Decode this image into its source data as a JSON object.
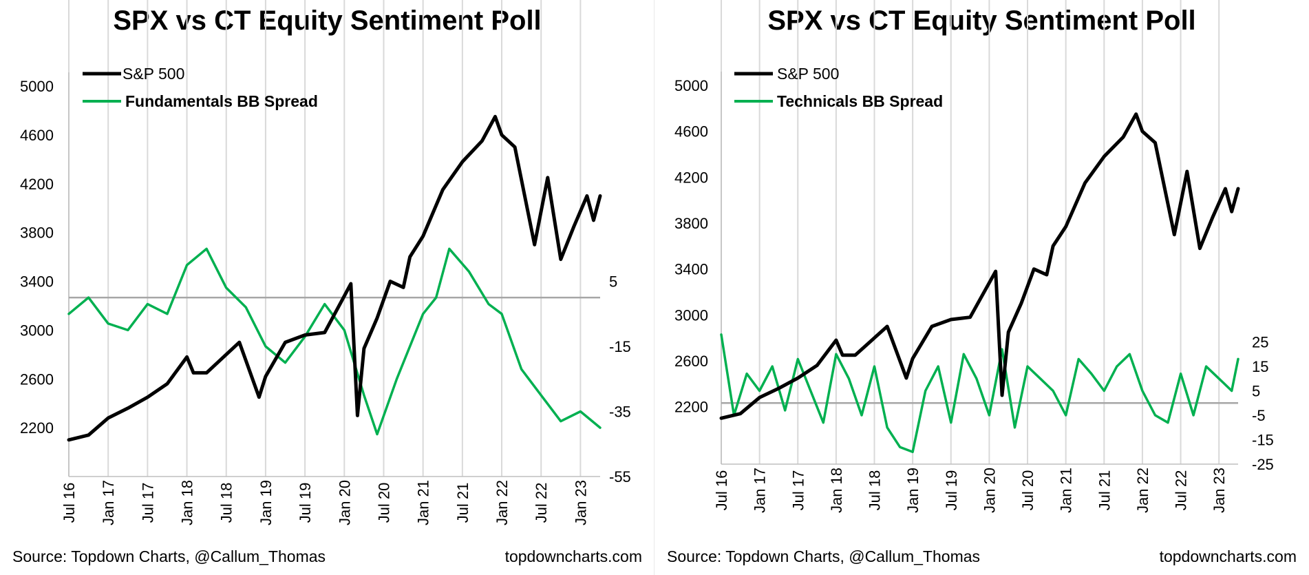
{
  "colors": {
    "spx": "#000000",
    "spread": "#00b050",
    "grid": "#d9d9d9",
    "zero_line": "#a6a6a6"
  },
  "panels": [
    {
      "title": "SPX vs CT Equity Sentiment Poll",
      "legend": [
        "S&P 500",
        "Fundamentals BB Spread"
      ],
      "source": "Source: Topdown Charts, @Callum_Thomas",
      "site": "topdowncharts.com"
    },
    {
      "title": "SPX vs CT Equity Sentiment Poll",
      "legend": [
        "S&P 500",
        "Technicals BB Spread"
      ],
      "source": "Source: Topdown Charts, @Callum_Thomas",
      "site": "topdowncharts.com"
    }
  ],
  "chart_data": [
    {
      "type": "line",
      "title": "SPX vs CT Equity Sentiment Poll",
      "x_range": [
        "Jul 16",
        "Apr 23"
      ],
      "x_ticks": [
        "Jul 16",
        "Jan 17",
        "Jul 17",
        "Jan 18",
        "Jul 18",
        "Jan 19",
        "Jul 19",
        "Jan 20",
        "Jul 20",
        "Jan 21",
        "Jul 21",
        "Jan 22",
        "Jul 22",
        "Jan 23"
      ],
      "y_left": {
        "ticks": [
          2200,
          2600,
          3000,
          3400,
          3800,
          4200,
          4600,
          5000
        ],
        "range": [
          1800,
          5000
        ]
      },
      "y_right": {
        "ticks": [
          5,
          -15,
          -35,
          -55
        ],
        "range": [
          -55,
          65
        ]
      },
      "horizontal_line_right": 0,
      "legend_position": "top-left",
      "grid": "vertical",
      "series": [
        {
          "name": "S&P 500",
          "axis": "left",
          "x": [
            "Jul 16",
            "Oct 16",
            "Jan 17",
            "Apr 17",
            "Jul 17",
            "Oct 17",
            "Jan 18",
            "Feb 18",
            "Apr 18",
            "Jul 18",
            "Sep 18",
            "Dec 18",
            "Jan 19",
            "Apr 19",
            "Jul 19",
            "Oct 19",
            "Jan 20",
            "Feb 20",
            "Mar 20",
            "Apr 20",
            "Jun 20",
            "Aug 20",
            "Oct 20",
            "Nov 20",
            "Jan 21",
            "Apr 21",
            "Jul 21",
            "Oct 21",
            "Dec 21",
            "Jan 22",
            "Mar 22",
            "Jun 22",
            "Aug 22",
            "Oct 22",
            "Dec 22",
            "Feb 23",
            "Mar 23",
            "Apr 23"
          ],
          "values": [
            2100,
            2140,
            2280,
            2360,
            2450,
            2560,
            2780,
            2650,
            2650,
            2800,
            2900,
            2450,
            2620,
            2900,
            2960,
            2980,
            3280,
            3380,
            2300,
            2850,
            3100,
            3400,
            3350,
            3600,
            3770,
            4150,
            4380,
            4550,
            4750,
            4600,
            4500,
            3700,
            4250,
            3580,
            3850,
            4100,
            3900,
            4100
          ]
        },
        {
          "name": "Fundamentals BB Spread",
          "axis": "right",
          "x": [
            "Jul 16",
            "Oct 16",
            "Jan 17",
            "Apr 17",
            "Jul 17",
            "Oct 17",
            "Jan 18",
            "Apr 18",
            "Jul 18",
            "Oct 18",
            "Jan 19",
            "Apr 19",
            "Jul 19",
            "Oct 19",
            "Jan 20",
            "Apr 20",
            "Jun 20",
            "Sep 20",
            "Jan 21",
            "Mar 21",
            "May 21",
            "Aug 21",
            "Nov 21",
            "Jan 22",
            "Apr 22",
            "Jul 22",
            "Oct 22",
            "Jan 23",
            "Apr 23"
          ],
          "values": [
            -5,
            0,
            -8,
            -10,
            -2,
            -5,
            10,
            15,
            3,
            -3,
            -15,
            -20,
            -12,
            -2,
            -10,
            -30,
            -42,
            -25,
            -5,
            0,
            15,
            8,
            -2,
            -5,
            -22,
            -30,
            -38,
            -35,
            -40
          ]
        }
      ]
    },
    {
      "type": "line",
      "title": "SPX vs CT Equity Sentiment Poll",
      "x_range": [
        "Jul 16",
        "Apr 23"
      ],
      "x_ticks": [
        "Jul 16",
        "Jan 17",
        "Jul 17",
        "Jan 18",
        "Jul 18",
        "Jan 19",
        "Jul 19",
        "Jan 20",
        "Jul 20",
        "Jan 21",
        "Jul 21",
        "Jan 22",
        "Jul 22",
        "Jan 23"
      ],
      "y_left": {
        "ticks": [
          2200,
          2600,
          3000,
          3400,
          3800,
          4200,
          4600,
          5000
        ],
        "range": [
          1700,
          5000
        ]
      },
      "y_right": {
        "ticks": [
          25,
          15,
          5,
          -5,
          -15,
          -25
        ],
        "range": [
          -25,
          130
        ]
      },
      "horizontal_line_right": 0,
      "legend_position": "top-left",
      "grid": "vertical",
      "series": [
        {
          "name": "S&P 500",
          "axis": "left",
          "x": [
            "Jul 16",
            "Oct 16",
            "Jan 17",
            "Apr 17",
            "Jul 17",
            "Oct 17",
            "Jan 18",
            "Feb 18",
            "Apr 18",
            "Jul 18",
            "Sep 18",
            "Dec 18",
            "Jan 19",
            "Apr 19",
            "Jul 19",
            "Oct 19",
            "Jan 20",
            "Feb 20",
            "Mar 20",
            "Apr 20",
            "Jun 20",
            "Aug 20",
            "Oct 20",
            "Nov 20",
            "Jan 21",
            "Apr 21",
            "Jul 21",
            "Oct 21",
            "Dec 21",
            "Jan 22",
            "Mar 22",
            "Jun 22",
            "Aug 22",
            "Oct 22",
            "Dec 22",
            "Feb 23",
            "Mar 23",
            "Apr 23"
          ],
          "values": [
            2100,
            2140,
            2280,
            2360,
            2450,
            2560,
            2780,
            2650,
            2650,
            2800,
            2900,
            2450,
            2620,
            2900,
            2960,
            2980,
            3280,
            3380,
            2300,
            2850,
            3100,
            3400,
            3350,
            3600,
            3770,
            4150,
            4380,
            4550,
            4750,
            4600,
            4500,
            3700,
            4250,
            3580,
            3850,
            4100,
            3900,
            4100
          ]
        },
        {
          "name": "Technicals BB Spread",
          "axis": "right",
          "x": [
            "Jul 16",
            "Sep 16",
            "Nov 16",
            "Jan 17",
            "Mar 17",
            "May 17",
            "Jul 17",
            "Sep 17",
            "Nov 17",
            "Jan 18",
            "Mar 18",
            "May 18",
            "Jul 18",
            "Sep 18",
            "Nov 18",
            "Jan 19",
            "Mar 19",
            "May 19",
            "Jul 19",
            "Sep 19",
            "Nov 19",
            "Jan 20",
            "Mar 20",
            "May 20",
            "Jul 20",
            "Sep 20",
            "Nov 20",
            "Jan 21",
            "Mar 21",
            "May 21",
            "Jul 21",
            "Sep 21",
            "Nov 21",
            "Jan 22",
            "Mar 22",
            "May 22",
            "Jul 22",
            "Sep 22",
            "Nov 22",
            "Jan 23",
            "Mar 23",
            "Apr 23"
          ],
          "values": [
            28,
            -5,
            12,
            5,
            15,
            -3,
            18,
            5,
            -8,
            20,
            10,
            -5,
            15,
            -10,
            -18,
            -20,
            5,
            15,
            -8,
            20,
            10,
            -5,
            22,
            -10,
            15,
            10,
            5,
            -5,
            18,
            12,
            5,
            15,
            20,
            5,
            -5,
            -8,
            12,
            -5,
            15,
            10,
            5,
            18
          ]
        }
      ]
    }
  ]
}
